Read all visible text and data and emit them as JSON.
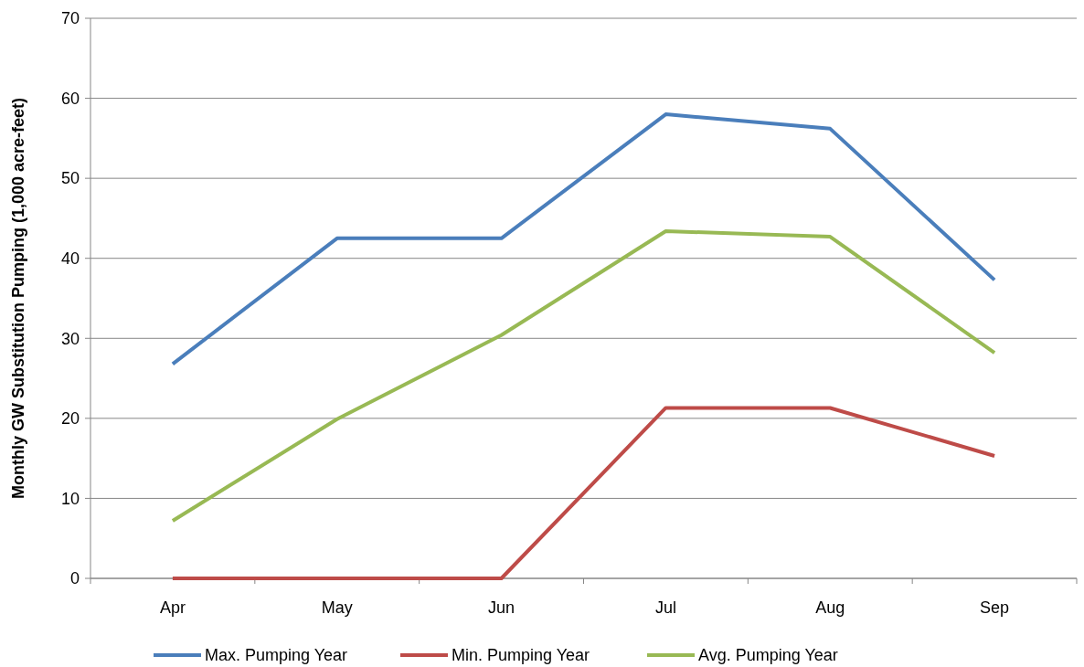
{
  "chart_data": {
    "type": "line",
    "ylabel": "Monthly GW Substitution Pumping (1,000 acre-feet)",
    "categories": [
      "Apr",
      "May",
      "Jun",
      "Jul",
      "Aug",
      "Sep"
    ],
    "ylim": [
      0,
      70
    ],
    "yticks": [
      0,
      10,
      20,
      30,
      40,
      50,
      60,
      70
    ],
    "grid": "y",
    "legend": "bottom",
    "marker": "none",
    "line_style": "solid",
    "series": [
      {
        "name": "Max. Pumping Year",
        "color": "#4a7ebb",
        "values": [
          26.8,
          42.5,
          42.5,
          58.0,
          56.2,
          37.3
        ]
      },
      {
        "name": "Min. Pumping Year",
        "color": "#be4b48",
        "values": [
          0,
          0,
          0,
          21.3,
          21.3,
          15.3
        ]
      },
      {
        "name": "Avg. Pumping Year",
        "color": "#98b954",
        "values": [
          7.2,
          19.9,
          30.4,
          43.4,
          42.7,
          28.2
        ]
      }
    ]
  }
}
